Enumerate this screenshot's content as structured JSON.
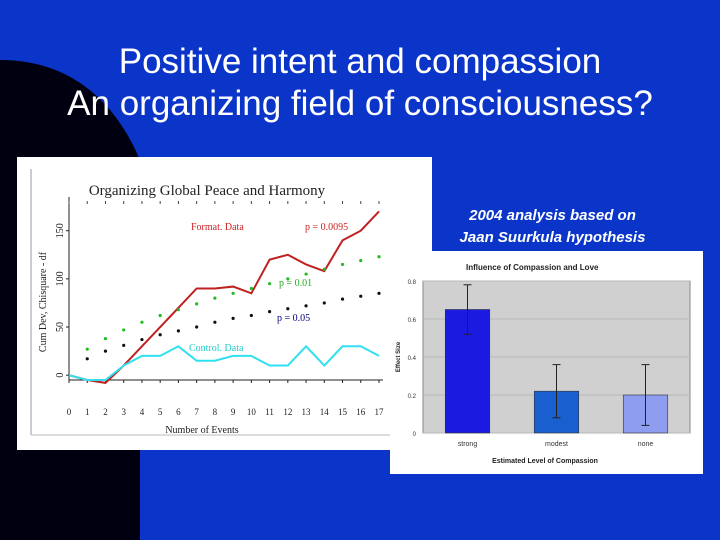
{
  "slide": {
    "title_line1": "Positive intent and compassion",
    "title_line2": "An organizing field of consciousness?",
    "caption_line1": "2004 analysis based on",
    "caption_line2": "Jaan Suurkula hypothesis",
    "colors": {
      "background": "#0a35c8",
      "corner_shape": "#000010",
      "text": "#ffffff"
    }
  },
  "chart_data": [
    {
      "type": "line",
      "title": "Organizing Global Peace and Harmony",
      "xlabel": "Number of Events",
      "ylabel": "Cum Dev, Chisquare - df",
      "xlim": [
        0,
        17
      ],
      "ylim": [
        -5,
        185
      ],
      "x_ticks": [
        "0",
        "1",
        "2",
        "3",
        "4",
        "5",
        "6",
        "7",
        "8",
        "9",
        "10",
        "11",
        "12",
        "13",
        "14",
        "15",
        "16",
        "17"
      ],
      "y_ticks": [
        {
          "label": "0",
          "value": 0
        },
        {
          "label": "50",
          "value": 50
        },
        {
          "label": "100",
          "value": 100
        },
        {
          "label": "150",
          "value": 150
        }
      ],
      "annotations": [
        {
          "text": "Format. Data",
          "color": "#cc2222"
        },
        {
          "text": "p = 0.0095",
          "color": "#cc2222"
        },
        {
          "text": "p = 0.01",
          "color": "#22aa22"
        },
        {
          "text": "p = 0.05",
          "color": "#000080"
        },
        {
          "text": "Control. Data",
          "color": "#22cccc"
        }
      ],
      "series": [
        {
          "name": "Format. Data",
          "color": "#c02020",
          "style": "line",
          "x": [
            0,
            1,
            2,
            3,
            4,
            5,
            6,
            7,
            8,
            9,
            10,
            11,
            12,
            13,
            14,
            15,
            16,
            17
          ],
          "y": [
            0,
            -5,
            -8,
            10,
            30,
            50,
            70,
            90,
            90,
            92,
            85,
            120,
            125,
            115,
            108,
            140,
            150,
            170
          ]
        },
        {
          "name": "Control. Data",
          "color": "#30e0f0",
          "style": "line",
          "x": [
            0,
            1,
            2,
            3,
            4,
            5,
            6,
            7,
            8,
            9,
            10,
            11,
            12,
            13,
            14,
            15,
            16,
            17
          ],
          "y": [
            0,
            -5,
            -5,
            10,
            20,
            20,
            30,
            15,
            15,
            20,
            20,
            10,
            10,
            30,
            10,
            30,
            30,
            20
          ]
        },
        {
          "name": "p = 0.01",
          "color": "#22bb22",
          "style": "dots",
          "x": [
            1,
            2,
            3,
            4,
            5,
            6,
            7,
            8,
            9,
            10,
            11,
            12,
            13,
            14,
            15,
            16,
            17
          ],
          "y": [
            27,
            38,
            47,
            55,
            62,
            68,
            74,
            80,
            85,
            90,
            95,
            100,
            105,
            110,
            115,
            119,
            123
          ]
        },
        {
          "name": "p = 0.05",
          "color": "#111111",
          "style": "dots",
          "x": [
            1,
            2,
            3,
            4,
            5,
            6,
            7,
            8,
            9,
            10,
            11,
            12,
            13,
            14,
            15,
            16,
            17
          ],
          "y": [
            17,
            25,
            31,
            37,
            42,
            46,
            50,
            55,
            59,
            62,
            66,
            69,
            72,
            75,
            79,
            82,
            85
          ]
        }
      ]
    },
    {
      "type": "bar",
      "title": "Influence of Compassion and Love",
      "xlabel": "Estimated Level of Compassion",
      "ylabel": "Effect Size",
      "categories": [
        "strong",
        "modest",
        "none"
      ],
      "values": [
        0.65,
        0.22,
        0.2
      ],
      "error": [
        0.13,
        0.14,
        0.16
      ],
      "bar_colors": [
        "#1a1ae0",
        "#1a5fd0",
        "#8e9df0"
      ],
      "ylim": [
        0,
        0.8
      ],
      "y_ticks": [
        "0",
        "0.2",
        "0.4",
        "0.6",
        "0.8"
      ],
      "plot_bg": "#d0d0d0"
    }
  ]
}
